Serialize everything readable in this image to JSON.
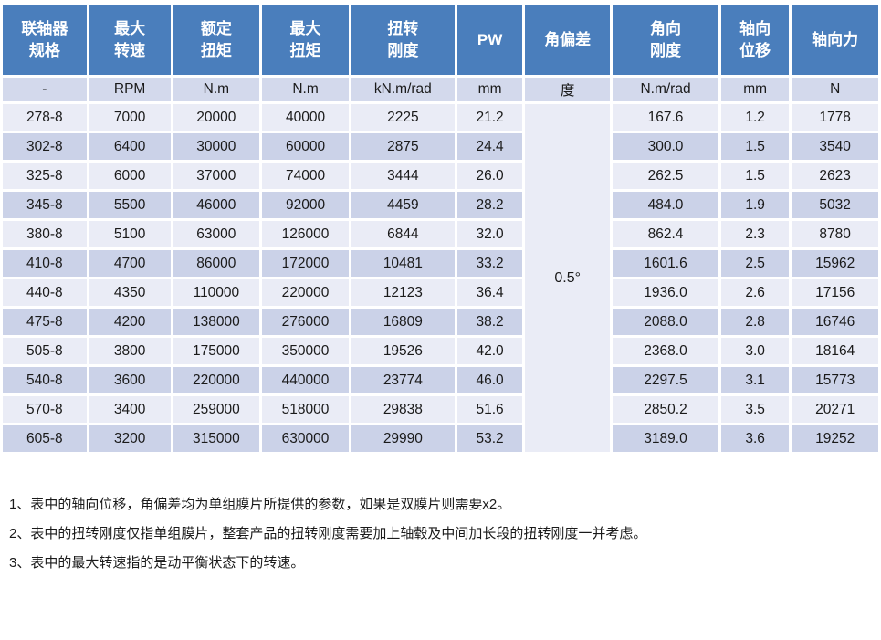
{
  "table": {
    "headers": [
      "联轴器\n规格",
      "最大\n转速",
      "额定\n扭矩",
      "最大\n扭矩",
      "扭转\n刚度",
      "PW",
      "角偏差",
      "角向\n刚度",
      "轴向\n位移",
      "轴向力"
    ],
    "units": [
      "-",
      "RPM",
      "N.m",
      "N.m",
      "kN.m/rad",
      "mm",
      "度",
      "N.m/rad",
      "mm",
      "N"
    ],
    "angle_misalignment_value": "0.5°",
    "rows": [
      {
        "spec": "278-8",
        "max_speed": "7000",
        "rated_torque": "20000",
        "max_torque": "40000",
        "torsional_stiffness": "2225",
        "pw": "21.2",
        "angular_stiffness": "167.6",
        "axial_displacement": "1.2",
        "axial_force": "1778"
      },
      {
        "spec": "302-8",
        "max_speed": "6400",
        "rated_torque": "30000",
        "max_torque": "60000",
        "torsional_stiffness": "2875",
        "pw": "24.4",
        "angular_stiffness": "300.0",
        "axial_displacement": "1.5",
        "axial_force": "3540"
      },
      {
        "spec": "325-8",
        "max_speed": "6000",
        "rated_torque": "37000",
        "max_torque": "74000",
        "torsional_stiffness": "3444",
        "pw": "26.0",
        "angular_stiffness": "262.5",
        "axial_displacement": "1.5",
        "axial_force": "2623"
      },
      {
        "spec": "345-8",
        "max_speed": "5500",
        "rated_torque": "46000",
        "max_torque": "92000",
        "torsional_stiffness": "4459",
        "pw": "28.2",
        "angular_stiffness": "484.0",
        "axial_displacement": "1.9",
        "axial_force": "5032"
      },
      {
        "spec": "380-8",
        "max_speed": "5100",
        "rated_torque": "63000",
        "max_torque": "126000",
        "torsional_stiffness": "6844",
        "pw": "32.0",
        "angular_stiffness": "862.4",
        "axial_displacement": "2.3",
        "axial_force": "8780"
      },
      {
        "spec": "410-8",
        "max_speed": "4700",
        "rated_torque": "86000",
        "max_torque": "172000",
        "torsional_stiffness": "10481",
        "pw": "33.2",
        "angular_stiffness": "1601.6",
        "axial_displacement": "2.5",
        "axial_force": "15962"
      },
      {
        "spec": "440-8",
        "max_speed": "4350",
        "rated_torque": "110000",
        "max_torque": "220000",
        "torsional_stiffness": "12123",
        "pw": "36.4",
        "angular_stiffness": "1936.0",
        "axial_displacement": "2.6",
        "axial_force": "17156"
      },
      {
        "spec": "475-8",
        "max_speed": "4200",
        "rated_torque": "138000",
        "max_torque": "276000",
        "torsional_stiffness": "16809",
        "pw": "38.2",
        "angular_stiffness": "2088.0",
        "axial_displacement": "2.8",
        "axial_force": "16746"
      },
      {
        "spec": "505-8",
        "max_speed": "3800",
        "rated_torque": "175000",
        "max_torque": "350000",
        "torsional_stiffness": "19526",
        "pw": "42.0",
        "angular_stiffness": "2368.0",
        "axial_displacement": "3.0",
        "axial_force": "18164"
      },
      {
        "spec": "540-8",
        "max_speed": "3600",
        "rated_torque": "220000",
        "max_torque": "440000",
        "torsional_stiffness": "23774",
        "pw": "46.0",
        "angular_stiffness": "2297.5",
        "axial_displacement": "3.1",
        "axial_force": "15773"
      },
      {
        "spec": "570-8",
        "max_speed": "3400",
        "rated_torque": "259000",
        "max_torque": "518000",
        "torsional_stiffness": "29838",
        "pw": "51.6",
        "angular_stiffness": "2850.2",
        "axial_displacement": "3.5",
        "axial_force": "20271"
      },
      {
        "spec": "605-8",
        "max_speed": "3200",
        "rated_torque": "315000",
        "max_torque": "630000",
        "torsional_stiffness": "29990",
        "pw": "53.2",
        "angular_stiffness": "3189.0",
        "axial_displacement": "3.6",
        "axial_force": "19252"
      }
    ]
  },
  "notes": [
    "1、表中的轴向位移，角偏差均为单组膜片所提供的参数，如果是双膜片则需要x2。",
    "2、表中的扭转刚度仅指单组膜片，整套产品的扭转刚度需要加上轴毂及中间加长段的扭转刚度一并考虑。",
    "3、表中的最大转速指的是动平衡状态下的转速。"
  ],
  "colors": {
    "header_bg": "#4a7ebc",
    "header_text": "#ffffff",
    "row_light": "#eaecf6",
    "row_dark": "#cbd2e8",
    "unit_row": "#d3d9ec",
    "body_text": "#1a1a1a"
  }
}
